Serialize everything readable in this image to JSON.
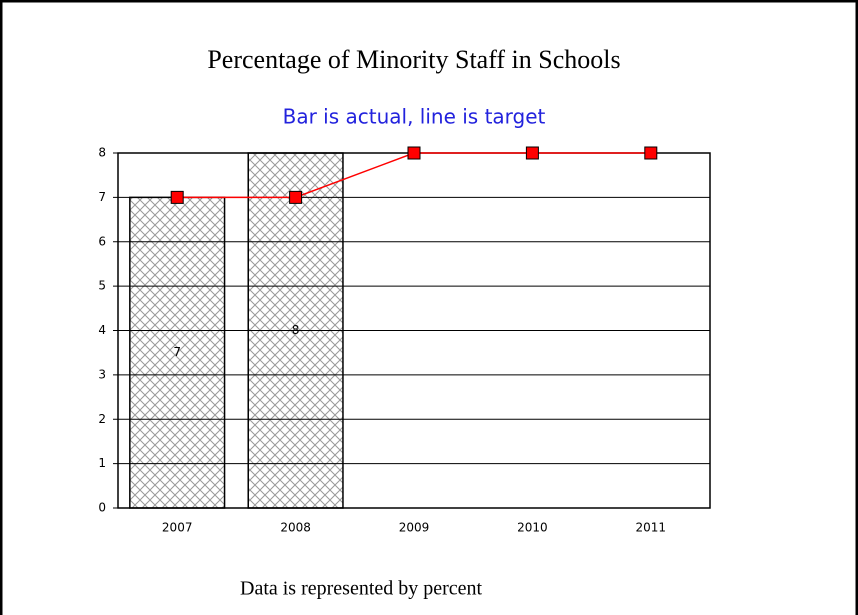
{
  "chart_data": {
    "type": "bar",
    "title": "Percentage of Minority Staff in Schools",
    "subtitle": "Bar is actual, line is target",
    "footnote": "Data is represented by percent",
    "categories": [
      "2007",
      "2008",
      "2009",
      "2010",
      "2011"
    ],
    "series": [
      {
        "type": "bar",
        "color": "#999999",
        "values": [
          7,
          8,
          null,
          null,
          null
        ]
      },
      {
        "type": "line",
        "color": "#ff0000",
        "values": [
          7,
          7,
          8,
          8,
          8
        ]
      }
    ],
    "ylim": [
      0,
      8
    ],
    "yticks": [
      0,
      1,
      2,
      3,
      4,
      5,
      6,
      7,
      8
    ],
    "grid": true
  }
}
